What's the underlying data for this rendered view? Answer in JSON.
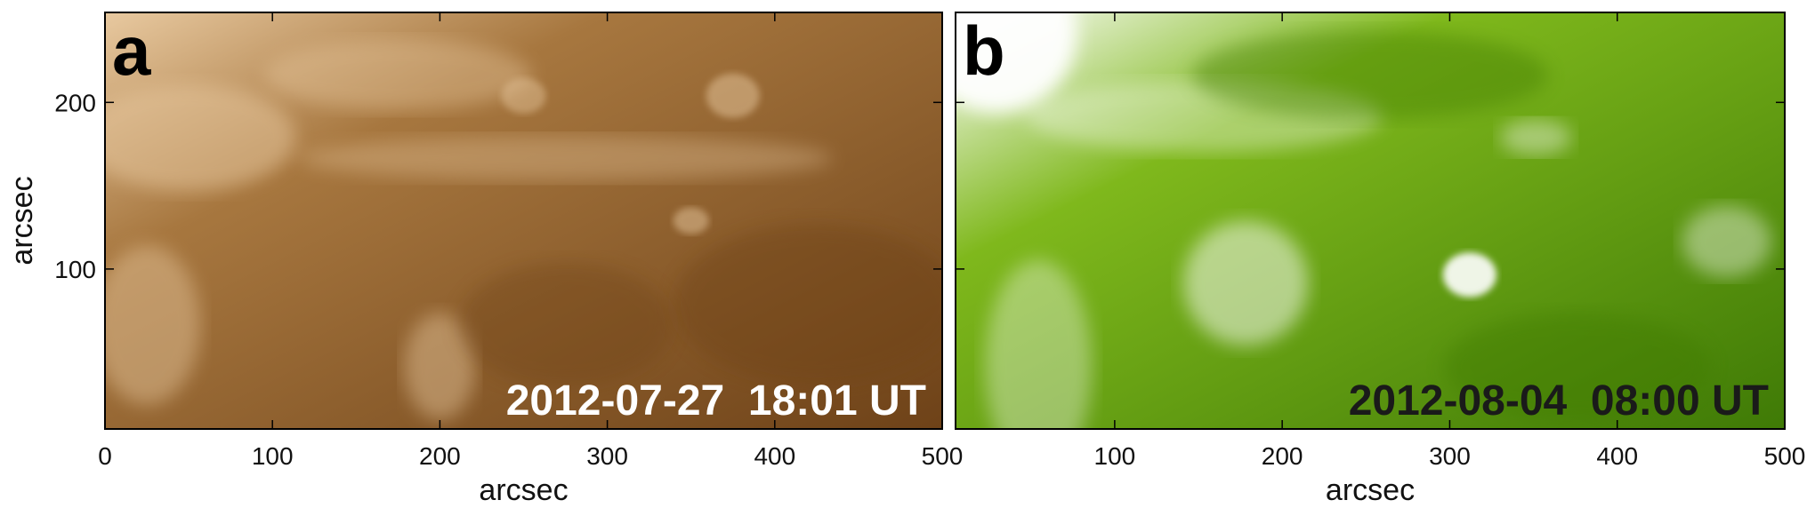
{
  "chart_data": [
    {
      "type": "image",
      "panel_label": "a",
      "annotation": "2012-07-27  18:01 UT",
      "annotation_color": "#ffffff",
      "xlabel": "arcsec",
      "ylabel": "arcsec",
      "xlim": [
        0,
        500
      ],
      "ylim": [
        4,
        254
      ],
      "xticks": [
        0,
        100,
        200,
        300,
        400,
        500
      ],
      "yticks": [
        100,
        200
      ],
      "colors": [
        "#e8c9a0",
        "#a7773f",
        "#6e4218"
      ]
    },
    {
      "type": "image",
      "panel_label": "b",
      "annotation": "2012-08-04  08:00 UT",
      "annotation_color": "#1a1a1a",
      "xlabel": "arcsec",
      "xlim": [
        5,
        500
      ],
      "ylim": [
        4,
        254
      ],
      "xticks": [
        100,
        200,
        300,
        400,
        500
      ],
      "colors": [
        "#ffffff",
        "#7fb81c",
        "#3f7a06"
      ]
    }
  ]
}
